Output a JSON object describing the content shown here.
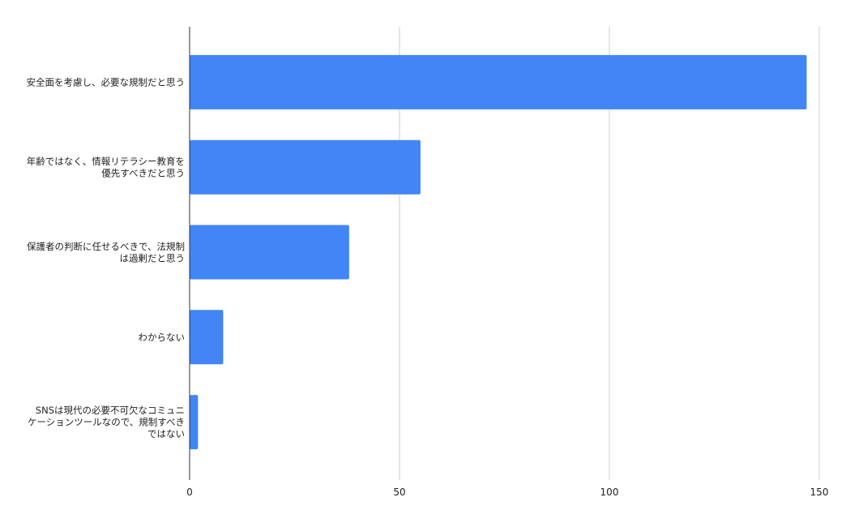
{
  "chart_data": {
    "type": "bar",
    "orientation": "horizontal",
    "categories": [
      [
        "安全面を考慮し、必要な規制だと思う"
      ],
      [
        "年齢ではなく、情報リテラシー教育を",
        "優先すべきだと思う"
      ],
      [
        "保護者の判断に任せるべきで、法規制",
        "は過剰だと思う"
      ],
      [
        "わからない"
      ],
      [
        "SNSは現代の必要不可欠なコミュニ",
        "ケーションツールなので、規制すべき",
        "ではない"
      ]
    ],
    "values": [
      147,
      55,
      38,
      8,
      2
    ],
    "xlim": [
      0,
      150
    ],
    "xticks": [
      "0",
      "50",
      "100",
      "150"
    ],
    "grid": true,
    "title": "",
    "xlabel": "",
    "ylabel": "",
    "colors": {
      "bar": "#4285f4",
      "grid": "#cccccc",
      "axis": "#333333"
    }
  }
}
